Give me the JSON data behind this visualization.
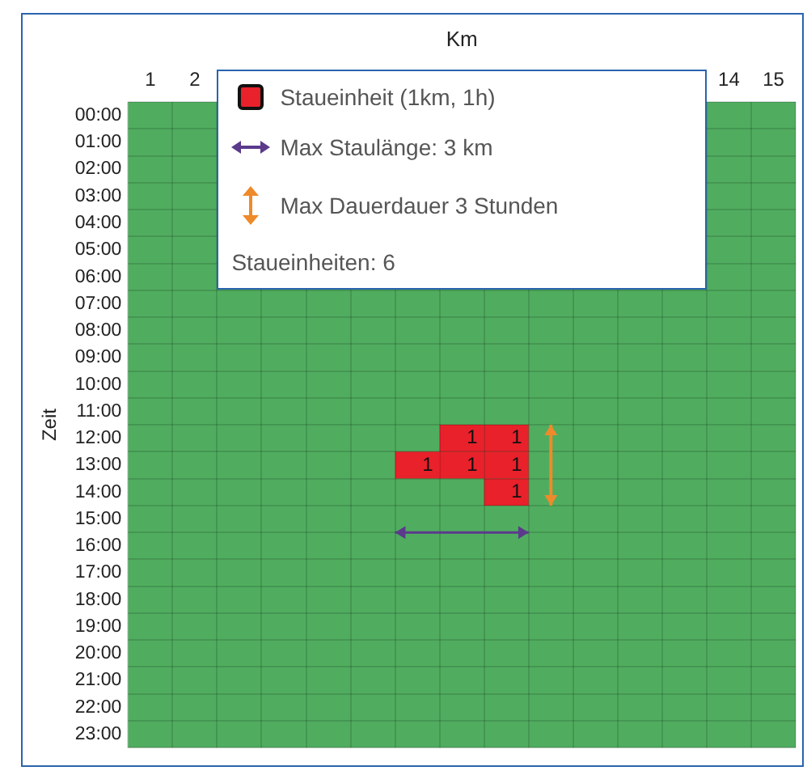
{
  "chart_data": {
    "type": "heatmap",
    "xlabel": "Km",
    "ylabel": "Zeit",
    "categories": [
      "1",
      "2",
      null,
      null,
      null,
      null,
      null,
      null,
      null,
      null,
      null,
      null,
      null,
      "14",
      "15"
    ],
    "y_categories": [
      "00:00",
      "01:00",
      "02:00",
      "03:00",
      "04:00",
      "05:00",
      "06:00",
      "07:00",
      "08:00",
      "09:00",
      "10:00",
      "11:00",
      "12:00",
      "13:00",
      "14:00",
      "15:00",
      "16:00",
      "17:00",
      "18:00",
      "19:00",
      "20:00",
      "21:00",
      "22:00",
      "23:00"
    ],
    "color": "#e8212b",
    "grid": true,
    "data_labels": true,
    "cells": [
      [
        null,
        null,
        null,
        null,
        null,
        null,
        null,
        null,
        null,
        null,
        null,
        null,
        null,
        null,
        null
      ],
      [
        null,
        null,
        null,
        null,
        null,
        null,
        null,
        null,
        null,
        null,
        null,
        null,
        null,
        null,
        null
      ],
      [
        null,
        null,
        null,
        null,
        null,
        null,
        null,
        null,
        null,
        null,
        null,
        null,
        null,
        null,
        null
      ],
      [
        null,
        null,
        null,
        null,
        null,
        null,
        null,
        null,
        null,
        null,
        null,
        null,
        null,
        null,
        null
      ],
      [
        null,
        null,
        null,
        null,
        null,
        null,
        null,
        null,
        null,
        null,
        null,
        null,
        null,
        null,
        null
      ],
      [
        null,
        null,
        null,
        null,
        null,
        null,
        null,
        null,
        null,
        null,
        null,
        null,
        null,
        null,
        null
      ],
      [
        null,
        null,
        null,
        null,
        null,
        null,
        null,
        null,
        null,
        null,
        null,
        null,
        null,
        null,
        null
      ],
      [
        null,
        null,
        null,
        null,
        null,
        null,
        null,
        null,
        null,
        null,
        null,
        null,
        null,
        null,
        null
      ],
      [
        null,
        null,
        null,
        null,
        null,
        null,
        null,
        null,
        null,
        null,
        null,
        null,
        null,
        null,
        null
      ],
      [
        null,
        null,
        null,
        null,
        null,
        null,
        null,
        null,
        null,
        null,
        null,
        null,
        null,
        null,
        null
      ],
      [
        null,
        null,
        null,
        null,
        null,
        null,
        null,
        null,
        null,
        null,
        null,
        null,
        null,
        null,
        null
      ],
      [
        null,
        null,
        null,
        null,
        null,
        null,
        null,
        null,
        null,
        null,
        null,
        null,
        null,
        null,
        null
      ],
      [
        null,
        null,
        null,
        null,
        null,
        null,
        null,
        1,
        1,
        null,
        null,
        null,
        null,
        null,
        null
      ],
      [
        null,
        null,
        null,
        null,
        null,
        null,
        1,
        1,
        1,
        null,
        null,
        null,
        null,
        null,
        null
      ],
      [
        null,
        null,
        null,
        null,
        null,
        null,
        null,
        null,
        1,
        null,
        null,
        null,
        null,
        null,
        null
      ],
      [
        null,
        null,
        null,
        null,
        null,
        null,
        null,
        null,
        null,
        null,
        null,
        null,
        null,
        null,
        null
      ],
      [
        null,
        null,
        null,
        null,
        null,
        null,
        null,
        null,
        null,
        null,
        null,
        null,
        null,
        null,
        null
      ],
      [
        null,
        null,
        null,
        null,
        null,
        null,
        null,
        null,
        null,
        null,
        null,
        null,
        null,
        null,
        null
      ],
      [
        null,
        null,
        null,
        null,
        null,
        null,
        null,
        null,
        null,
        null,
        null,
        null,
        null,
        null,
        null
      ],
      [
        null,
        null,
        null,
        null,
        null,
        null,
        null,
        null,
        null,
        null,
        null,
        null,
        null,
        null,
        null
      ],
      [
        null,
        null,
        null,
        null,
        null,
        null,
        null,
        null,
        null,
        null,
        null,
        null,
        null,
        null,
        null
      ],
      [
        null,
        null,
        null,
        null,
        null,
        null,
        null,
        null,
        null,
        null,
        null,
        null,
        null,
        null,
        null
      ],
      [
        null,
        null,
        null,
        null,
        null,
        null,
        null,
        null,
        null,
        null,
        null,
        null,
        null,
        null,
        null
      ],
      [
        null,
        null,
        null,
        null,
        null,
        null,
        null,
        null,
        null,
        null,
        null,
        null,
        null,
        null,
        null
      ]
    ],
    "annotations": [
      "Staueinheit (1km, 1h)",
      "Max Staulänge: 3 km",
      "Max Dauerdauer 3 Stunden",
      "Staueinheiten: 6"
    ]
  }
}
